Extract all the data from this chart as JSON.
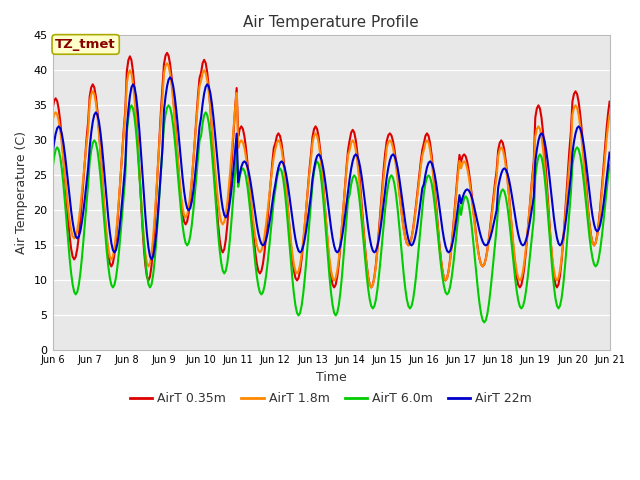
{
  "title": "Air Temperature Profile",
  "xlabel": "Time",
  "ylabel": "Air Temperature (C)",
  "annotation_text": "TZ_tmet",
  "annotation_bg": "#ffffcc",
  "annotation_border": "#aaaa00",
  "xlim_start": 0,
  "xlim_end": 360,
  "ylim": [
    0,
    45
  ],
  "yticks": [
    0,
    5,
    10,
    15,
    20,
    25,
    30,
    35,
    40,
    45
  ],
  "xtick_labels": [
    "Jun 6",
    "Jun 7",
    "Jun 8",
    "Jun 9",
    "Jun 10",
    "Jun 11",
    "Jun 12",
    "Jun 13",
    "Jun 14",
    "Jun 15",
    "Jun 16",
    "Jun 17",
    "Jun 18",
    "Jun 19",
    "Jun 20",
    "Jun 21"
  ],
  "xtick_positions": [
    0,
    24,
    48,
    72,
    96,
    120,
    144,
    168,
    192,
    216,
    240,
    264,
    288,
    312,
    336,
    360
  ],
  "series_colors": [
    "#dd0000",
    "#ff8800",
    "#00cc00",
    "#0000cc"
  ],
  "series_names": [
    "AirT 0.35m",
    "AirT 1.8m",
    "AirT 6.0m",
    "AirT 22m"
  ],
  "lw": 1.5,
  "fig_bg": "#ffffff",
  "plot_bg": "#e8e8e8",
  "grid_color": "#ffffff"
}
